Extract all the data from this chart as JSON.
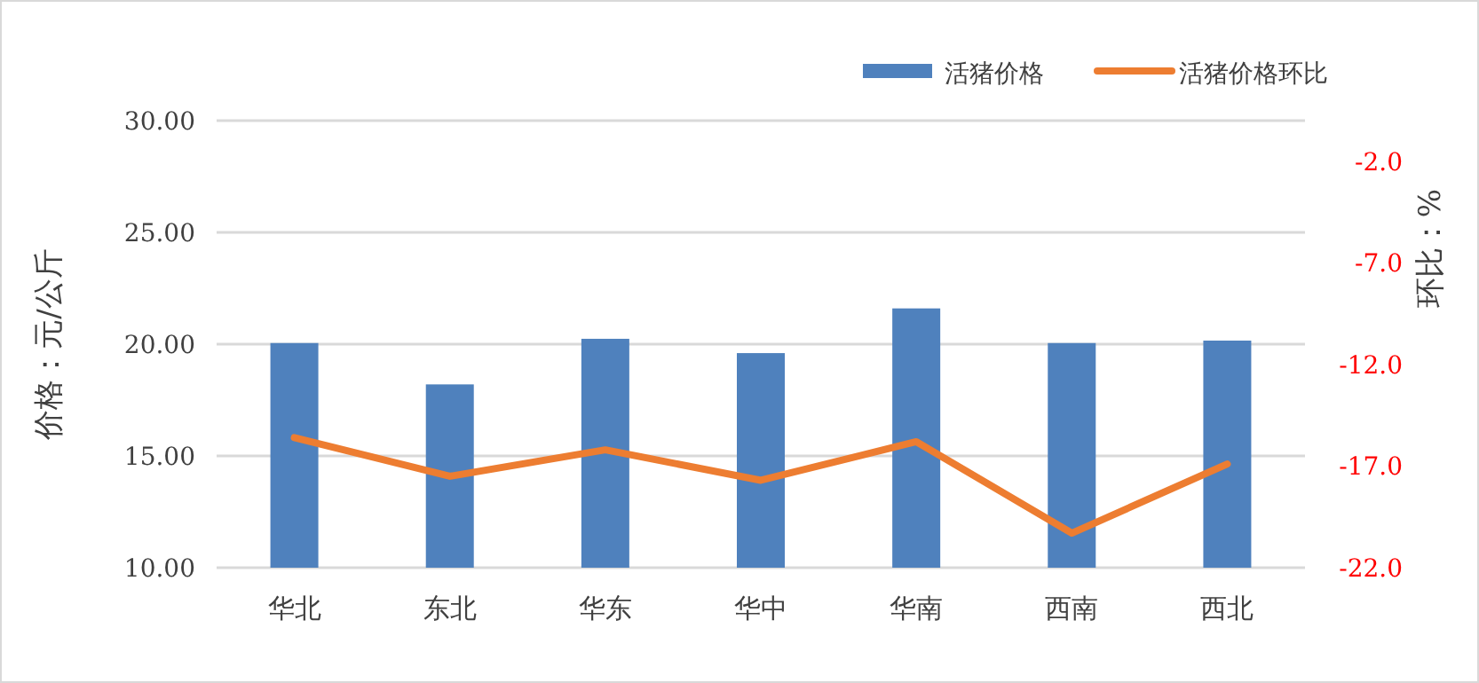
{
  "chart_data": {
    "type": "bar",
    "categories": [
      "华北",
      "东北",
      "华东",
      "华中",
      "华南",
      "西南",
      "西北"
    ],
    "series": [
      {
        "name": "活猪价格",
        "color": "#4f81bd",
        "values": [
          20.05,
          18.2,
          20.24,
          19.6,
          21.6,
          20.05,
          20.16
        ]
      },
      {
        "name": "活猪价格环比",
        "type": "line",
        "axis": "y2",
        "color": "#ed7d31",
        "values": [
          -15.6,
          -17.5,
          -16.2,
          -17.7,
          -15.8,
          -20.3,
          -16.9
        ]
      }
    ],
    "ylabel": "价格：元/公斤",
    "y2label": "环比：%",
    "ylim": [
      10,
      30
    ],
    "yticks": [
      {
        "value": 10,
        "label": "10.00"
      },
      {
        "value": 15,
        "label": "15.00"
      },
      {
        "value": 20,
        "label": "20.00"
      },
      {
        "value": 25,
        "label": "25.00"
      },
      {
        "value": 30,
        "label": "30.00"
      }
    ],
    "y2lim": [
      -22,
      0
    ],
    "y2ticks": [
      {
        "value": -22,
        "label": "-22.0"
      },
      {
        "value": -17,
        "label": "-17.0"
      },
      {
        "value": -12,
        "label": "-12.0"
      },
      {
        "value": -7,
        "label": "-7.0"
      },
      {
        "value": -2,
        "label": "-2.0"
      }
    ],
    "grid": "y",
    "legend": "top right",
    "marker": "none",
    "line_style": "solid"
  }
}
